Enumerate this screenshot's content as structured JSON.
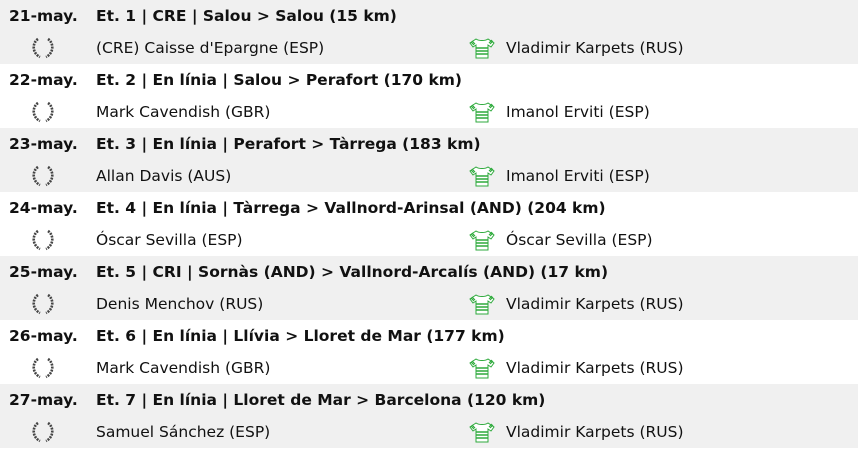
{
  "icons": {
    "winner": "laurel-wreath-icon",
    "leader": "green-jersey-icon"
  },
  "colors": {
    "jersey": "#2eaa3c",
    "laurel": "#444444",
    "row_alt": "#f0f0f0"
  },
  "stages": [
    {
      "date": "21-may.",
      "title": "Et. 1 | CRE | Salou > Salou (15 km)",
      "winner": "(CRE) Caisse d'Epargne (ESP)",
      "leader": "Vladimir Karpets (RUS)"
    },
    {
      "date": "22-may.",
      "title": "Et. 2 | En línia | Salou > Perafort (170 km)",
      "winner": "Mark Cavendish (GBR)",
      "leader": "Imanol Erviti (ESP)"
    },
    {
      "date": "23-may.",
      "title": "Et. 3 | En línia | Perafort > Tàrrega (183 km)",
      "winner": "Allan Davis (AUS)",
      "leader": "Imanol Erviti (ESP)"
    },
    {
      "date": "24-may.",
      "title": "Et. 4 | En línia | Tàrrega > Vallnord-Arinsal (AND) (204 km)",
      "winner": "Óscar Sevilla (ESP)",
      "leader": "Óscar Sevilla (ESP)"
    },
    {
      "date": "25-may.",
      "title": "Et. 5 | CRI | Sornàs (AND) > Vallnord-Arcalís (AND) (17 km)",
      "winner": "Denis Menchov (RUS)",
      "leader": "Vladimir Karpets (RUS)"
    },
    {
      "date": "26-may.",
      "title": "Et. 6 | En línia | Llívia > Lloret de Mar (177 km)",
      "winner": "Mark Cavendish (GBR)",
      "leader": "Vladimir Karpets (RUS)"
    },
    {
      "date": "27-may.",
      "title": "Et. 7 | En línia | Lloret de Mar > Barcelona (120 km)",
      "winner": "Samuel Sánchez (ESP)",
      "leader": "Vladimir Karpets (RUS)"
    }
  ]
}
